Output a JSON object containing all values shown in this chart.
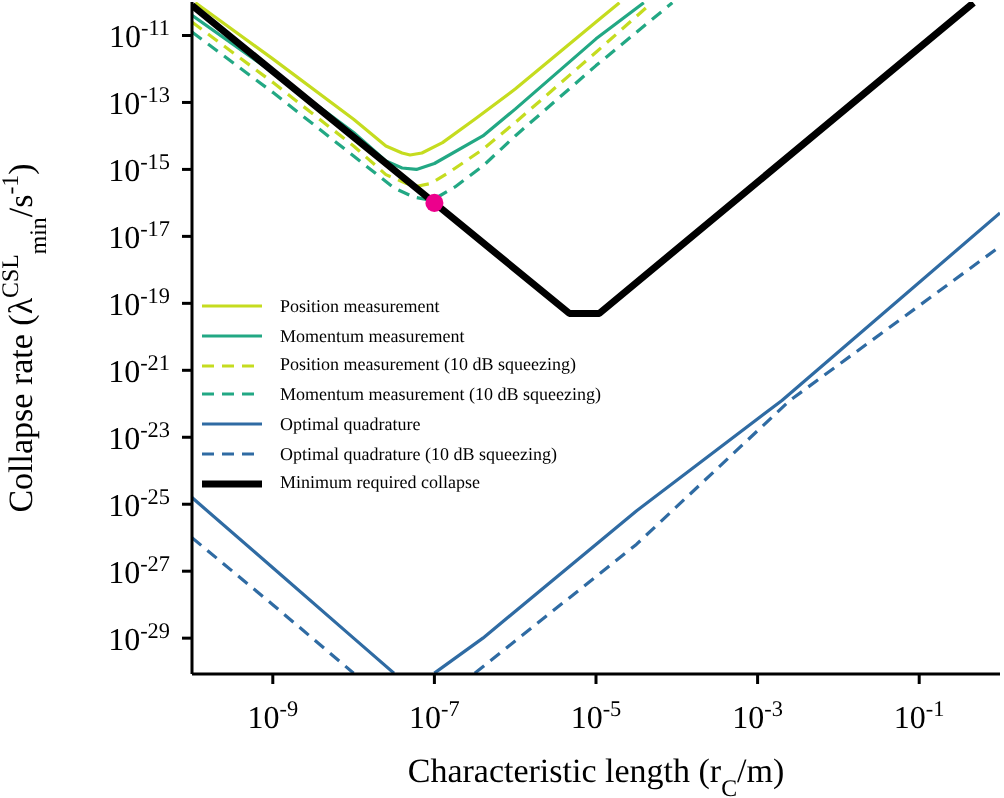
{
  "chart_data": {
    "type": "line",
    "xlabel": "Characteristic length (r$_{C}$/m)",
    "ylabel": "Collapse rate (λ$^{CSL}$$_{min}$/s$^{-1}$)",
    "log": "xy",
    "grid": false,
    "legend": "left",
    "marker": "none",
    "xlim": [
      1e-10,
      1
    ],
    "xticks": [
      {
        "value": 1e-09,
        "label": "10$^{-9}$"
      },
      {
        "value": 1e-07,
        "label": "10$^{-7}$"
      },
      {
        "value": 1e-05,
        "label": "10$^{-5}$"
      },
      {
        "value": 0.001,
        "label": "10$^{-3}$"
      },
      {
        "value": 0.1,
        "label": "10$^{-1}$"
      }
    ],
    "ylim": [
      8.5e-31,
      1e-10
    ],
    "yticks": [
      {
        "value": 1e-11,
        "label": "10$^{-11}$"
      },
      {
        "value": 1e-13,
        "label": "10$^{-13}$"
      },
      {
        "value": 1e-15,
        "label": "10$^{-15}$"
      },
      {
        "value": 1e-17,
        "label": "10$^{-17}$"
      },
      {
        "value": 1e-19,
        "label": "10$^{-19}$"
      },
      {
        "value": 1e-21,
        "label": "10$^{-21}$"
      },
      {
        "value": 1e-23,
        "label": "10$^{-23}$"
      },
      {
        "value": 1e-25,
        "label": "10$^{-25}$"
      },
      {
        "value": 1e-27,
        "label": "10$^{-27}$"
      },
      {
        "value": 1e-29,
        "label": "10$^{-29}$"
      }
    ],
    "series": [
      {
        "name": "Position measurement",
        "color": "#c5dc1f",
        "line_style": "solid",
        "x": [
          1.1e-10,
          1e-09,
          1e-08,
          2.51e-08,
          3.98e-08,
          5e-08,
          7e-08,
          1.26e-07,
          3.16e-07,
          1e-06,
          1e-05,
          1.95e-05
        ],
        "values": [
          9.5e-11,
          2e-12,
          3.16e-14,
          5e-15,
          3.1e-15,
          2.7e-15,
          3.1e-15,
          6.3e-15,
          3.16e-14,
          2.51e-13,
          2.51e-11,
          9.5e-11
        ]
      },
      {
        "name": "Momentum measurement",
        "color": "#22a884",
        "line_style": "solid",
        "x": [
          1e-10,
          1e-09,
          1e-08,
          2.51e-08,
          3.98e-08,
          6e-08,
          1e-07,
          3.98e-07,
          1e-06,
          1e-05,
          3.9e-05
        ],
        "values": [
          3.98e-11,
          7.94e-13,
          1.26e-14,
          1.8e-15,
          1.1e-15,
          1e-15,
          1.5e-15,
          1e-14,
          6.31e-14,
          7.94e-12,
          9.5e-11
        ]
      },
      {
        "name": "Position measurement (10 dB squeezing)",
        "color": "#c5dc1f",
        "line_style": "dashed",
        "x": [
          1e-10,
          1e-09,
          1e-08,
          2.51e-08,
          4.5e-08,
          6.31e-08,
          9e-08,
          1.5e-07,
          3.98e-07,
          1e-06,
          1e-05,
          4.9e-05
        ],
        "values": [
          2.51e-11,
          3.98e-13,
          5e-15,
          7e-16,
          3.8e-16,
          3.2e-16,
          3.8e-16,
          8e-16,
          3.98e-15,
          2.51e-14,
          3.16e-12,
          9.5e-11
        ]
      },
      {
        "name": "Momentum measurement (10 dB squeezing)",
        "color": "#22a884",
        "line_style": "dashed",
        "x": [
          1e-10,
          1e-09,
          1e-08,
          3.16e-08,
          5.5e-08,
          7.94e-08,
          1.1e-07,
          1.8e-07,
          3.98e-07,
          1e-06,
          1e-05,
          8.8e-05
        ],
        "values": [
          1.26e-11,
          2e-13,
          2.51e-15,
          2.8e-16,
          1.5e-16,
          1.26e-16,
          1.5e-16,
          3e-16,
          1.26e-15,
          1e-14,
          1.26e-12,
          9.5e-11
        ]
      },
      {
        "name": "Optimal quadrature",
        "color": "#2f6ba3",
        "line_style": "solid",
        "x": [
          1e-10,
          1e-09,
          1e-08,
          3.16e-08,
          5e-08,
          1e-07,
          3.98e-07,
          3.16e-05,
          0.002,
          1
        ],
        "values": [
          1.58e-25,
          1.26e-27,
          1e-29,
          9e-31,
          null,
          9e-31,
          1e-29,
          6.31e-26,
          1.26e-22,
          5e-17
        ]
      },
      {
        "name": "Optimal quadrature (10 dB squeezing)",
        "color": "#2f6ba3",
        "line_style": "dashed",
        "x": [
          1e-10,
          1e-09,
          1e-08,
          1e-07,
          3.16e-07,
          3.16e-05,
          0.00251,
          1
        ],
        "values": [
          1e-26,
          1e-28,
          9e-31,
          null,
          9e-31,
          6.31e-27,
          1.26e-22,
          5e-18
        ]
      },
      {
        "name": "Minimum required collapse",
        "color": "#000000",
        "line_style": "solid",
        "x": [
          1e-10,
          1e-07,
          4.68e-06,
          1.1e-05,
          0.47
        ],
        "values": [
          7.94e-11,
          1e-16,
          5e-20,
          5e-20,
          9.5e-11
        ]
      },
      {
        "type": "scatter",
        "color": "#ec008c",
        "marker": "circle",
        "x": [
          1e-07
        ],
        "values": [
          1e-16
        ]
      }
    ]
  }
}
